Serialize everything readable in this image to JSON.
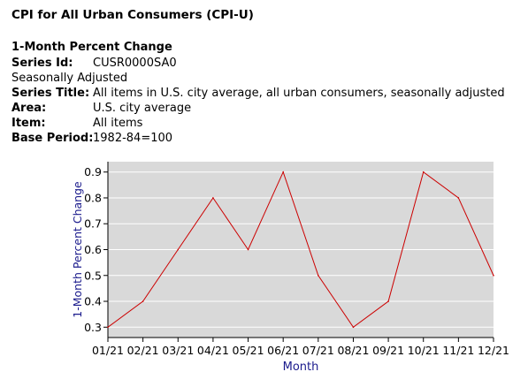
{
  "page_title": "CPI for All Urban Consumers (CPI-U)",
  "section_title": "1-Month Percent Change",
  "meta": {
    "series_id_label": "Series Id:",
    "series_id": "CUSR0000SA0",
    "adjustment": "Seasonally Adjusted",
    "series_title_label": "Series Title:",
    "series_title": "All items in U.S. city average, all urban consumers, seasonally adjusted",
    "area_label": "Area:",
    "area": "U.S. city average",
    "item_label": "Item:",
    "item": "All items",
    "base_period_label": "Base Period:",
    "base_period": "1982-84=100"
  },
  "chart_data": {
    "type": "line",
    "xlabel": "Month",
    "ylabel": "1-Month Percent Change",
    "categories": [
      "01/21",
      "02/21",
      "03/21",
      "04/21",
      "05/21",
      "06/21",
      "07/21",
      "08/21",
      "09/21",
      "10/21",
      "11/21",
      "12/21"
    ],
    "values": [
      0.3,
      0.4,
      0.6,
      0.8,
      0.6,
      0.9,
      0.5,
      0.3,
      0.4,
      0.9,
      0.8,
      0.5
    ],
    "yticks": [
      "0.3",
      "0.4",
      "0.5",
      "0.6",
      "0.7",
      "0.8",
      "0.9"
    ],
    "ylim": [
      0.26,
      0.94
    ],
    "grid": true,
    "line_color": "#cc0000",
    "plot_background": "#d9d9d9",
    "grid_color": "#ffffff",
    "axis_label_color": "#1a1a8c"
  }
}
